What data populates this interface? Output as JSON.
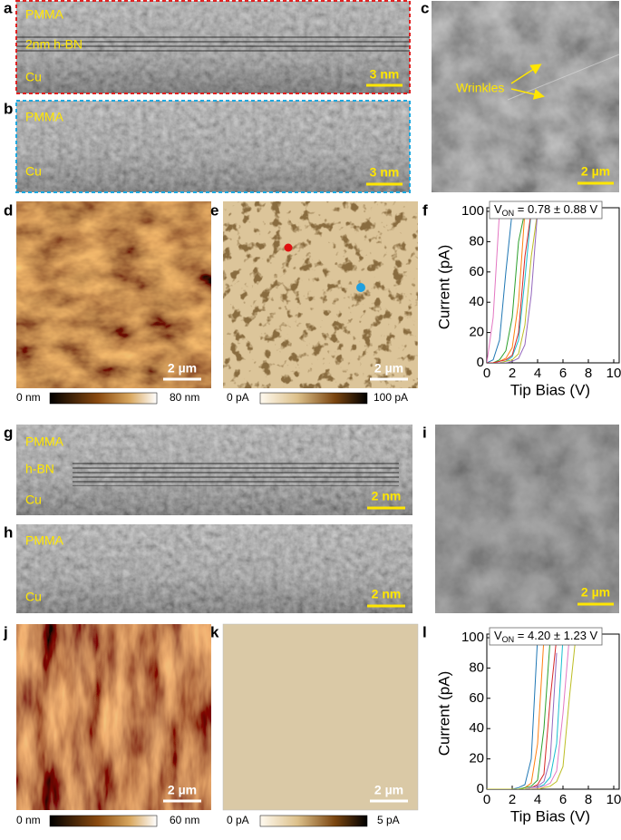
{
  "panels": {
    "a": {
      "letter": "a",
      "labels": [
        "PMMA",
        "2nm  h-BN",
        "Cu"
      ],
      "scale_bar": "3 nm"
    },
    "b": {
      "letter": "b",
      "labels": [
        "PMMA",
        "Cu"
      ],
      "scale_bar": "3 nm"
    },
    "c": {
      "letter": "c",
      "annotation": "Wrinkles",
      "scale_bar": "2 µm"
    },
    "d": {
      "letter": "d",
      "scale_bar": "2 µm",
      "colorbar": {
        "min": "0 nm",
        "max": "80 nm"
      }
    },
    "e": {
      "letter": "e",
      "scale_bar": "2 µm",
      "colorbar": {
        "min": "0 pA",
        "max": "100 pA"
      }
    },
    "f": {
      "letter": "f"
    },
    "g": {
      "letter": "g",
      "labels": [
        "PMMA",
        "h-BN",
        "Cu"
      ],
      "scale_bar": "2 nm"
    },
    "h": {
      "letter": "h",
      "labels": [
        "PMMA",
        "Cu"
      ],
      "scale_bar": "2 nm"
    },
    "i": {
      "letter": "i",
      "scale_bar": "2 µm"
    },
    "j": {
      "letter": "j",
      "scale_bar": "2 µm",
      "colorbar": {
        "min": "0 nm",
        "max": "60 nm"
      }
    },
    "k": {
      "letter": "k",
      "scale_bar": "2 µm",
      "colorbar": {
        "min": "0 pA",
        "max": "5 pA"
      }
    },
    "l": {
      "letter": "l"
    }
  },
  "chart_data": [
    {
      "type": "line",
      "x_label": "Tip Bias (V)",
      "y_label": "Current (pA)",
      "annotation": {
        "symbol": "V",
        "subscript": "ON",
        "text": " =  0.78 ± 0.88 V"
      },
      "xlim": [
        0,
        10
      ],
      "ylim": [
        0,
        100
      ],
      "xticks": [
        0,
        2,
        4,
        6,
        8,
        10
      ],
      "yticks": [
        0,
        20,
        40,
        60,
        80,
        100
      ],
      "x": [
        0,
        0.5,
        1,
        1.5,
        2,
        2.5,
        3,
        3.5,
        4
      ],
      "series": [
        {
          "color": "#e377c2",
          "values": [
            0,
            30,
            100,
            null,
            null,
            null,
            null,
            null,
            null
          ]
        },
        {
          "color": "#1f77b4",
          "values": [
            0,
            2,
            15,
            60,
            100,
            null,
            null,
            null,
            null
          ]
        },
        {
          "color": "#2ca02c",
          "values": [
            0,
            0,
            2,
            8,
            30,
            80,
            100,
            null,
            null
          ]
        },
        {
          "color": "#ff7f0e",
          "values": [
            0,
            0,
            1,
            3,
            10,
            40,
            100,
            null,
            null
          ]
        },
        {
          "color": "#17becf",
          "values": [
            0,
            0,
            0,
            1,
            4,
            15,
            55,
            100,
            null
          ]
        },
        {
          "color": "#bcbd22",
          "values": [
            0,
            0,
            0,
            1,
            2,
            6,
            25,
            70,
            100
          ]
        },
        {
          "color": "#9467bd",
          "values": [
            0,
            0,
            0,
            0,
            1,
            3,
            12,
            45,
            100
          ]
        },
        {
          "color": "#d62728",
          "values": [
            0,
            0,
            1,
            2,
            5,
            20,
            70,
            100,
            null
          ]
        }
      ]
    },
    {
      "type": "line",
      "x_label": "Tip Bias (V)",
      "y_label": "Current (pA)",
      "annotation": {
        "symbol": "V",
        "subscript": "ON",
        "text": " = 4.20 ± 1.23 V"
      },
      "xlim": [
        0,
        10
      ],
      "ylim": [
        0,
        100
      ],
      "xticks": [
        0,
        2,
        4,
        6,
        8,
        10
      ],
      "yticks": [
        0,
        20,
        40,
        60,
        80,
        100
      ],
      "x": [
        0,
        1,
        2,
        2.5,
        3,
        3.5,
        4,
        4.5,
        5,
        5.5,
        6,
        6.5,
        7
      ],
      "series": [
        {
          "color": "#1f77b4",
          "values": [
            0,
            0,
            0,
            1,
            3,
            20,
            100,
            null,
            null,
            null,
            null,
            null,
            null
          ]
        },
        {
          "color": "#ff7f0e",
          "values": [
            0,
            0,
            0,
            0,
            1,
            4,
            30,
            100,
            null,
            null,
            null,
            null,
            null
          ]
        },
        {
          "color": "#2ca02c",
          "values": [
            0,
            0,
            0,
            0,
            1,
            2,
            6,
            40,
            100,
            null,
            null,
            null,
            null
          ]
        },
        {
          "color": "#d62728",
          "values": [
            0,
            0,
            0,
            0,
            0,
            1,
            3,
            10,
            60,
            100,
            null,
            null,
            null
          ]
        },
        {
          "color": "#9467bd",
          "values": [
            0,
            0,
            0,
            0,
            0,
            1,
            2,
            5,
            20,
            90,
            null,
            null,
            null
          ]
        },
        {
          "color": "#17becf",
          "values": [
            0,
            0,
            0,
            0,
            0,
            0,
            1,
            3,
            8,
            30,
            100,
            null,
            null
          ]
        },
        {
          "color": "#e377c2",
          "values": [
            0,
            0,
            0,
            0,
            0,
            0,
            1,
            2,
            4,
            12,
            50,
            100,
            null
          ]
        },
        {
          "color": "#bcbd22",
          "values": [
            0,
            0,
            0,
            0,
            0,
            0,
            0,
            1,
            2,
            5,
            15,
            60,
            100
          ]
        }
      ]
    }
  ]
}
